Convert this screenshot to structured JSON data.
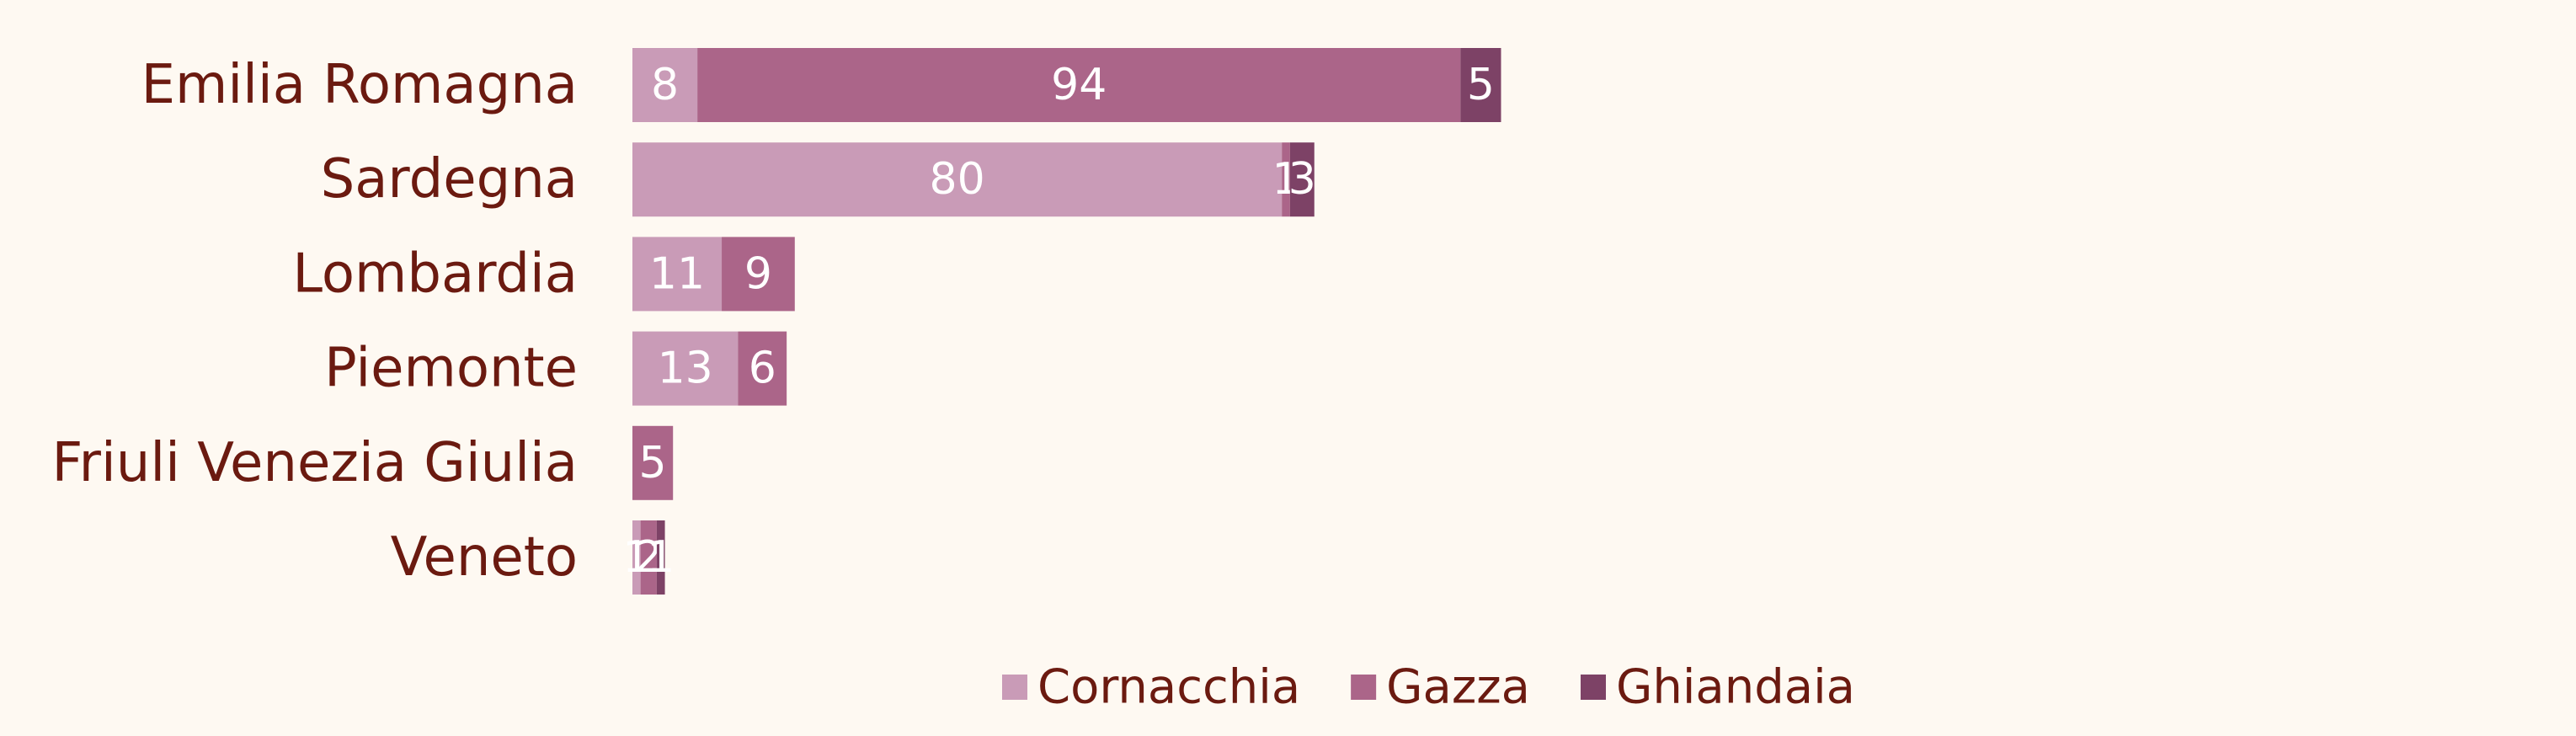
{
  "chart_data": {
    "type": "bar",
    "orientation": "horizontal",
    "stacked": true,
    "categories": [
      "Emilia Romagna",
      "Sardegna",
      "Lombardia",
      "Piemonte",
      "Friuli Venezia Giulia",
      "Veneto"
    ],
    "series": [
      {
        "name": "Cornacchia",
        "color": "#c99bb7",
        "values": [
          8,
          80,
          11,
          13,
          0,
          1
        ]
      },
      {
        "name": "Gazza",
        "color": "#ab6589",
        "values": [
          94,
          1,
          9,
          6,
          5,
          2
        ]
      },
      {
        "name": "Ghiandaia",
        "color": "#7d4266",
        "values": [
          5,
          3,
          0,
          0,
          0,
          1
        ]
      }
    ],
    "legend_position": "bottom",
    "grid": false,
    "x_axis_visible": false,
    "xlim": [
      0,
      107
    ]
  },
  "colors": {
    "background": "#fef9f2",
    "label_text": "#6b1a10",
    "value_text": "#ffffff"
  }
}
